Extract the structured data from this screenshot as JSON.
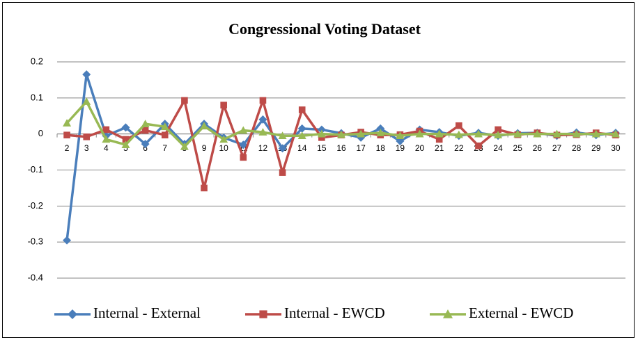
{
  "chart_data": {
    "type": "line",
    "title": "Congressional Voting Dataset",
    "categories": [
      "2",
      "3",
      "4",
      "5",
      "6",
      "7",
      "8",
      "9",
      "10",
      "11",
      "12",
      "13",
      "14",
      "15",
      "16",
      "17",
      "18",
      "19",
      "20",
      "21",
      "22",
      "23",
      "24",
      "25",
      "26",
      "27",
      "28",
      "29",
      "30"
    ],
    "series": [
      {
        "name": "Internal - External",
        "color": "#4a7ebb",
        "marker": "diamond",
        "values": [
          -0.295,
          0.165,
          -0.005,
          0.018,
          -0.028,
          0.028,
          -0.028,
          0.028,
          -0.01,
          -0.03,
          0.04,
          -0.04,
          0.015,
          0.012,
          0.002,
          -0.01,
          0.015,
          -0.02,
          0.012,
          0.005,
          -0.005,
          0.003,
          -0.005,
          0.002,
          0.003,
          -0.005,
          0.004,
          -0.003,
          0.003
        ]
      },
      {
        "name": "Internal - EWCD",
        "color": "#be4b48",
        "marker": "square",
        "values": [
          -0.003,
          -0.008,
          0.012,
          -0.015,
          0.01,
          -0.003,
          0.093,
          -0.15,
          0.08,
          -0.065,
          0.093,
          -0.107,
          0.067,
          -0.01,
          -0.003,
          0.005,
          -0.003,
          -0.002,
          0.008,
          -0.015,
          0.023,
          -0.033,
          0.012,
          -0.002,
          0.003,
          -0.003,
          -0.002,
          0.003,
          -0.003
        ]
      },
      {
        "name": "External - EWCD",
        "color": "#98b954",
        "marker": "triangle",
        "values": [
          0.03,
          0.09,
          -0.015,
          -0.03,
          0.028,
          0.02,
          -0.035,
          0.022,
          -0.015,
          0.01,
          0.005,
          -0.005,
          -0.005,
          0,
          -0.002,
          0,
          0.003,
          -0.005,
          0,
          0,
          -0.002,
          0,
          -0.003,
          0,
          0,
          0,
          0,
          0,
          0
        ]
      }
    ],
    "ylim": [
      -0.4,
      0.2
    ],
    "yticks": [
      0.2,
      0.1,
      0,
      -0.1,
      -0.2,
      -0.3,
      -0.4
    ],
    "grid": true,
    "legend": "bottom"
  }
}
